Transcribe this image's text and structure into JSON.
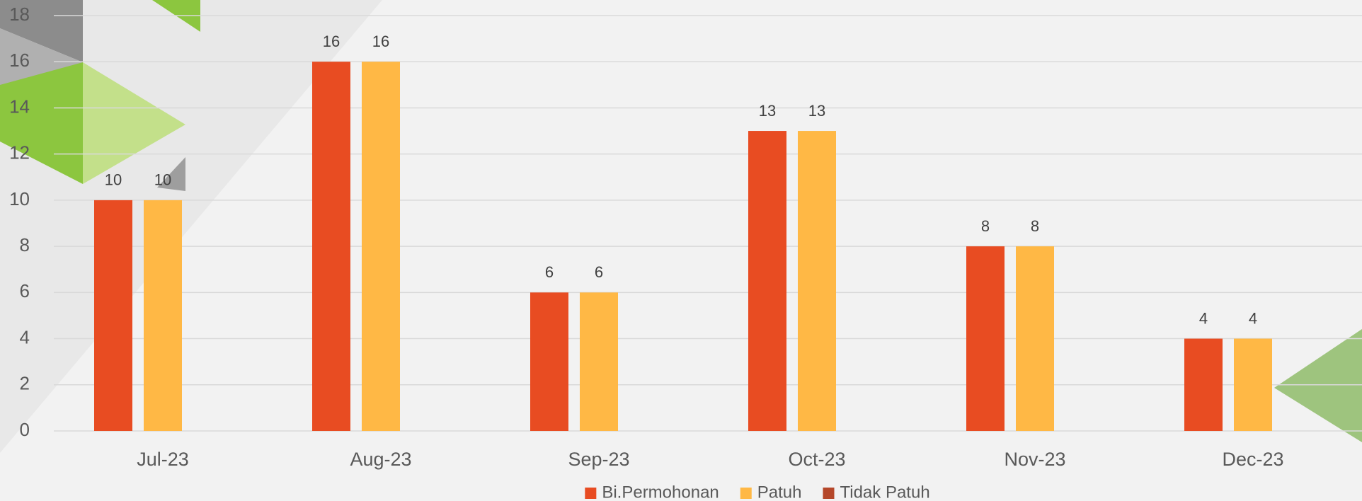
{
  "chart_data": {
    "type": "bar",
    "categories": [
      "Jul-23",
      "Aug-23",
      "Sep-23",
      "Oct-23",
      "Nov-23",
      "Dec-23"
    ],
    "series": [
      {
        "name": "Bi.Permohonan",
        "color": "#e84c22",
        "values": [
          10,
          16,
          6,
          13,
          8,
          4
        ]
      },
      {
        "name": "Patuh",
        "color": "#ffb845",
        "values": [
          10,
          16,
          6,
          13,
          8,
          4
        ]
      },
      {
        "name": "Tidak Patuh",
        "color": "#b5472a",
        "values": [
          null,
          null,
          null,
          null,
          null,
          null
        ]
      }
    ],
    "ylim": [
      0,
      18
    ],
    "yticks": [
      0,
      2,
      4,
      6,
      8,
      10,
      12,
      14,
      16,
      18
    ],
    "grid": true,
    "legend": "bottom"
  }
}
